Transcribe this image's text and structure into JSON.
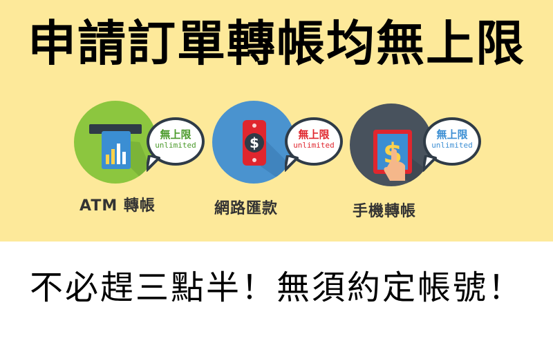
{
  "title": "申請訂單轉帳均無上限",
  "tagline": "不必趕三點半！無須約定帳號！",
  "items": [
    {
      "label": "ATM 轉帳",
      "bubble_cn": "無上限",
      "bubble_en": "unlimited",
      "circle_color": "#8cc63f",
      "bubble_text_color": "#4a9a2a",
      "icon": "atm-card-icon"
    },
    {
      "label": "網路匯款",
      "bubble_cn": "無上限",
      "bubble_en": "unlimited",
      "circle_color": "#4a93cf",
      "bubble_text_color": "#e0262e",
      "icon": "phone-dollar-icon"
    },
    {
      "label": "手機轉帳",
      "bubble_cn": "無上限",
      "bubble_en": "unlimited",
      "circle_color": "#48525d",
      "bubble_text_color": "#3b8ed3",
      "icon": "tablet-touch-icon"
    }
  ]
}
